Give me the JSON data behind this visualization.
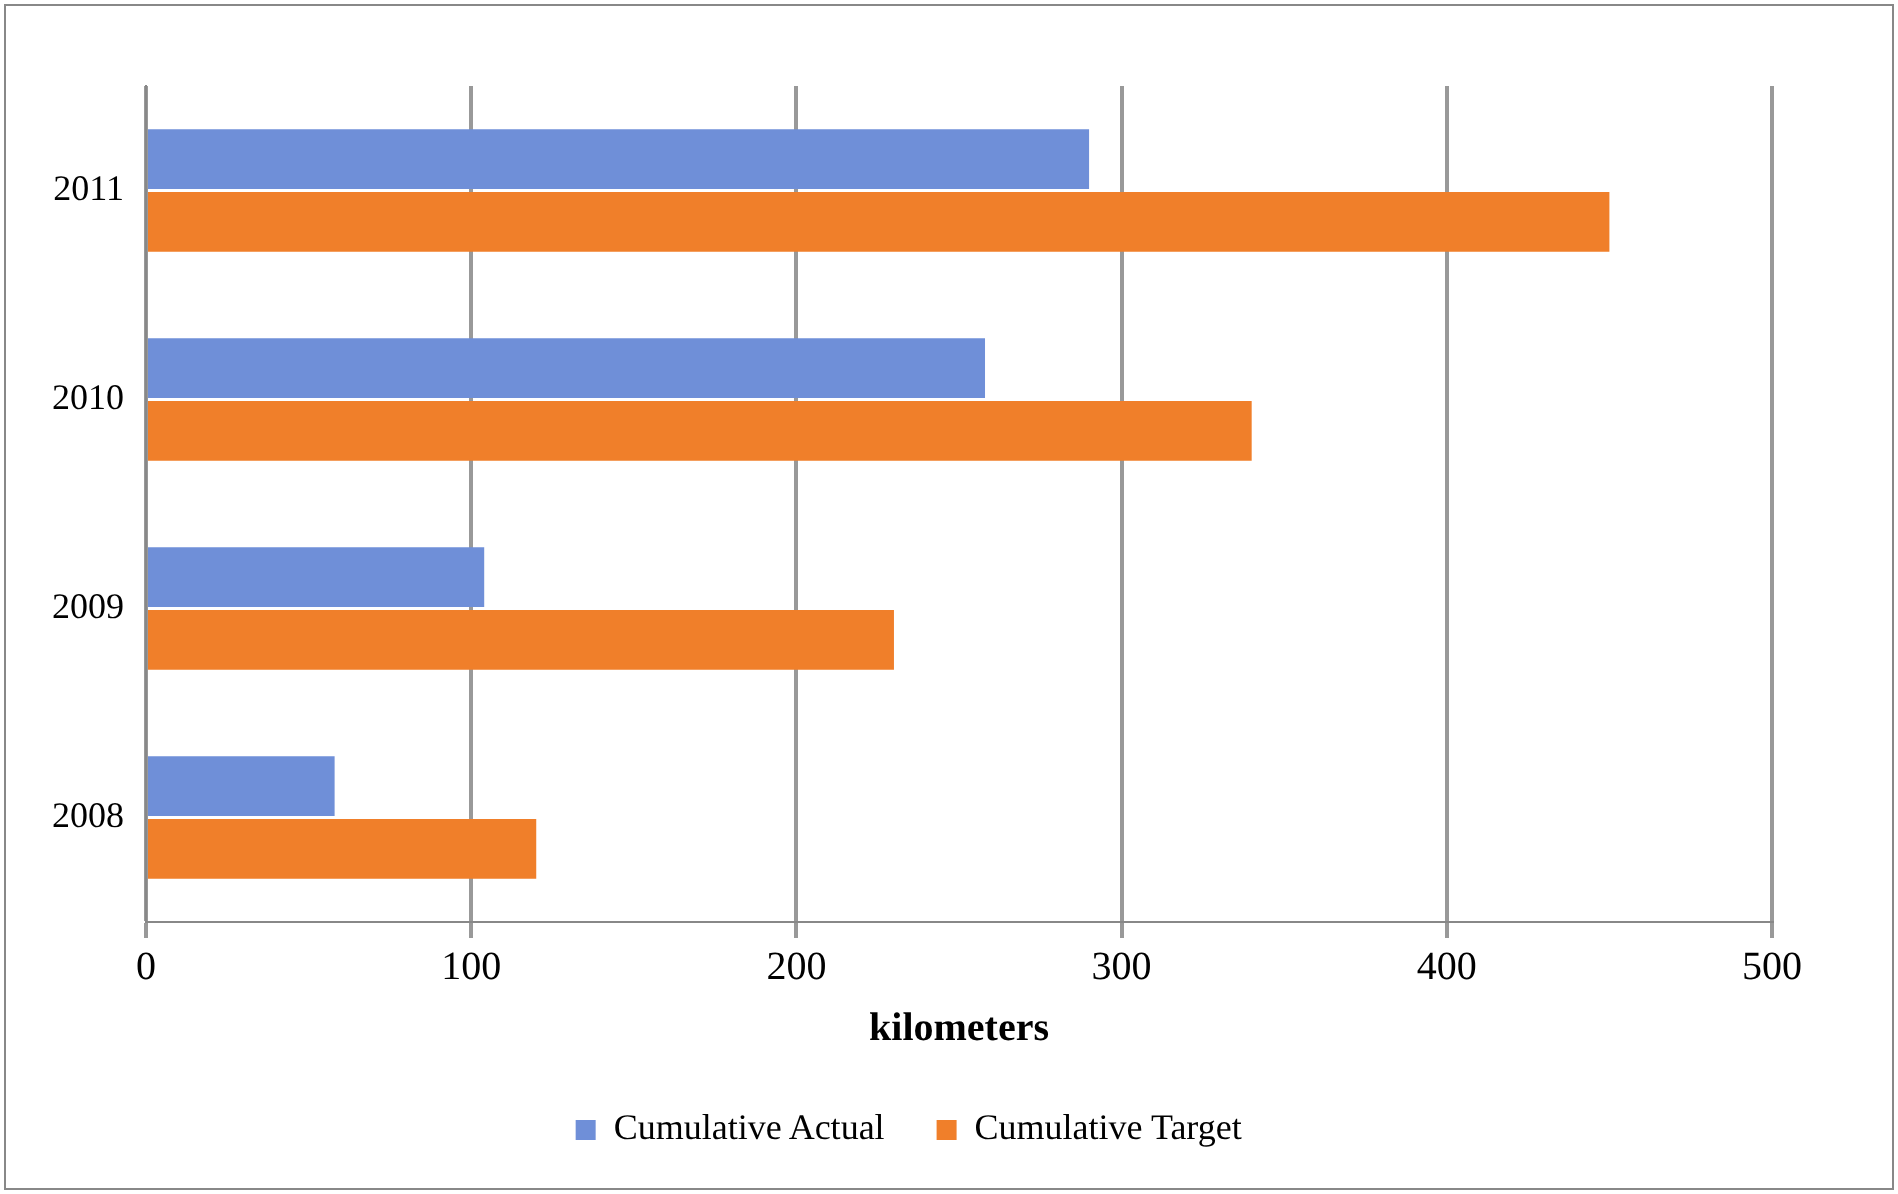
{
  "chart_data": {
    "type": "bar",
    "orientation": "horizontal",
    "xlabel": "kilometers",
    "categories": [
      "2011",
      "2010",
      "2009",
      "2008"
    ],
    "series": [
      {
        "name": "Cumulative Actual",
        "color": "#6f8fd8",
        "values": [
          290,
          258,
          104,
          58
        ]
      },
      {
        "name": "Cumulative Target",
        "color": "#f07f2a",
        "values": [
          450,
          340,
          230,
          120
        ]
      }
    ],
    "xlim": [
      0,
      500
    ],
    "xticks": [
      0,
      100,
      200,
      300,
      400,
      500
    ],
    "grid": "x",
    "legend": "bottom"
  }
}
